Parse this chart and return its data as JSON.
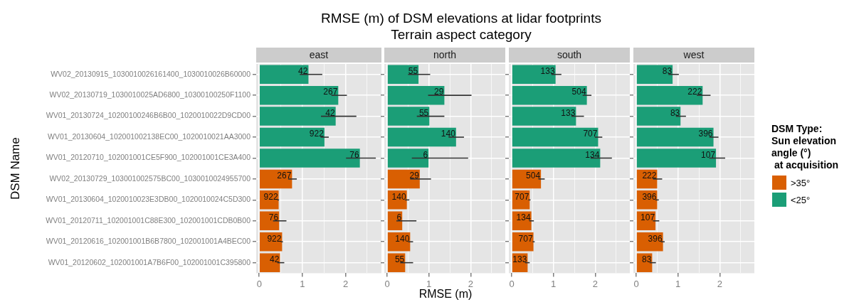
{
  "chart_data": [
    {
      "type": "bar",
      "orientation": "horizontal",
      "stacked": true,
      "title": "east",
      "ylabel": "DSM Name",
      "legend": "right",
      "legend_title": "DSM Type:\nSun elevation\nangle (°)\n at acquisition",
      "grid": true,
      "xlim": [
        -0.07,
        2.83
      ],
      "xticks": [
        0,
        {
          "value": 0.5,
          "label": null
        },
        1,
        {
          "value": 1.5,
          "label": null
        },
        2,
        {
          "value": 2.5,
          "label": null
        }
      ],
      "categories": [
        "WV02_20130915_1030010026161400_1030010026B60000",
        "WV02_20130719_1030010025AD6800_10300100250F1100",
        "WV01_20130724_10200100246B6B00_1020010022D9CD00",
        "WV01_20130604_102001002138EC00_1020010021AA3000",
        "WV01_20120710_102001001CE5F900_102001001CE3A400",
        "WV02_20130729_103001002575BC00_1030010024955700",
        "WV01_20130604_1020010023E3DB00_1020010024C5D300",
        "WV01_20120711_102001001C88E300_102001001CDB0B00",
        "WV01_20120616_102001001B6B7800_102001001A4BEC00",
        "WV01_20120602_102001001A7B6F00_102001001C395800"
      ],
      "series": [
        {
          "name": ">35°",
          "color": "#d95f02",
          "values": [
            null,
            null,
            null,
            null,
            null,
            0.76,
            0.45,
            0.46,
            0.53,
            0.48
          ],
          "errors": [
            null,
            null,
            null,
            null,
            null,
            [
              0.67,
              0.87
            ],
            [
              0.42,
              0.46
            ],
            [
              0.32,
              0.63
            ],
            [
              0.5,
              0.55
            ],
            [
              0.42,
              0.58
            ]
          ]
        },
        {
          "name": "<25°",
          "color": "#1b9e77",
          "values": [
            1.14,
            1.83,
            1.77,
            1.51,
            2.33,
            null,
            null,
            null,
            null,
            null
          ],
          "errors": [
            [
              0.94,
              1.46
            ],
            [
              1.67,
              2.03
            ],
            [
              1.43,
              2.25
            ],
            [
              1.42,
              1.61
            ],
            [
              2.01,
              2.7
            ],
            null,
            null,
            null,
            null,
            null
          ]
        }
      ],
      "annotations": [
        "RMSE (m) of DSM elevations at lidar footprints",
        "Terrain aspect category",
        {
          "text": "42",
          "x": 1.14,
          "y": "WV02_20130915_1030010026161400_1030010026B60000"
        },
        {
          "text": "267",
          "x": 1.83,
          "y": "WV02_20130719_1030010025AD6800_10300100250F1100"
        },
        {
          "text": "42",
          "x": 1.77,
          "y": "WV01_20130724_10200100246B6B00_1020010022D9CD00"
        },
        {
          "text": "922",
          "x": 1.51,
          "y": "WV01_20130604_102001002138EC00_1020010021AA3000"
        },
        {
          "text": "76",
          "x": 2.33,
          "y": "WV01_20120710_102001001CE5F900_102001001CE3A400"
        },
        {
          "text": "267",
          "x": 0.76,
          "y": "WV02_20130729_103001002575BC00_1030010024955700"
        },
        {
          "text": "922",
          "x": 0.45,
          "y": "WV01_20130604_1020010023E3DB00_1020010024C5D300"
        },
        {
          "text": "76",
          "x": 0.46,
          "y": "WV01_20120711_102001001C88E300_102001001CDB0B00"
        },
        {
          "text": "922",
          "x": 0.53,
          "y": "WV01_20120616_102001001B6B7800_102001001A4BEC00"
        },
        {
          "text": "42",
          "x": 0.48,
          "y": "WV01_20120602_102001001A7B6F00_102001001C395800"
        }
      ]
    },
    {
      "type": "bar",
      "orientation": "horizontal",
      "stacked": true,
      "title": "north",
      "xlabel": "RMSE (m)",
      "tick_labels": "x",
      "grid": true,
      "xlim": [
        -0.07,
        2.83
      ],
      "xticks": [
        0,
        {
          "value": 0.5,
          "label": null
        },
        1,
        {
          "value": 1.5,
          "label": null
        },
        2,
        {
          "value": 2.5,
          "label": null
        }
      ],
      "categories": [
        "WV02_20130915_1030010026161400_1030010026B60000",
        "WV02_20130719_1030010025AD6800_10300100250F1100",
        "WV01_20130724_10200100246B6B00_1020010022D9CD00",
        "WV01_20130604_102001002138EC00_1020010021AA3000",
        "WV01_20120710_102001001CE5F900_102001001CE3A400",
        "WV02_20130729_103001002575BC00_1030010024955700",
        "WV01_20130604_1020010023E3DB00_1020010024C5D300",
        "WV01_20120711_102001001C88E300_102001001CDB0B00",
        "WV01_20120616_102001001B6B7800_102001001A4BEC00",
        "WV01_20120602_102001001A7B6F00_102001001C395800"
      ],
      "series": [
        {
          "color": "#d95f02",
          "values": [
            null,
            null,
            null,
            null,
            null,
            0.78,
            0.47,
            0.36,
            0.55,
            0.43
          ],
          "errors": [
            null,
            null,
            null,
            null,
            null,
            [
              0.55,
              1.05
            ],
            [
              0.43,
              0.53
            ],
            [
              0.22,
              0.7
            ],
            [
              0.5,
              0.62
            ],
            [
              0.31,
              0.62
            ]
          ]
        },
        {
          "color": "#1b9e77",
          "values": [
            0.75,
            1.37,
            1.01,
            1.65,
            0.99,
            null,
            null,
            null,
            null,
            null
          ],
          "errors": [
            [
              0.5,
              1.03
            ],
            [
              0.98,
              2.02
            ],
            [
              0.71,
              1.37
            ],
            [
              1.47,
              1.84
            ],
            [
              0.59,
              1.94
            ],
            null,
            null,
            null,
            null,
            null
          ]
        }
      ],
      "annotations": [
        {
          "text": "55",
          "x": 0.75,
          "y": "WV02_20130915_1030010026161400_1030010026B60000"
        },
        {
          "text": "29",
          "x": 1.37,
          "y": "WV02_20130719_1030010025AD6800_10300100250F1100"
        },
        {
          "text": "55",
          "x": 1.01,
          "y": "WV01_20130724_10200100246B6B00_1020010022D9CD00"
        },
        {
          "text": "140",
          "x": 1.65,
          "y": "WV01_20130604_102001002138EC00_1020010021AA3000"
        },
        {
          "text": "6",
          "x": 0.99,
          "y": "WV01_20120710_102001001CE5F900_102001001CE3A400"
        },
        {
          "text": "29",
          "x": 0.78,
          "y": "WV02_20130729_103001002575BC00_1030010024955700"
        },
        {
          "text": "140",
          "x": 0.47,
          "y": "WV01_20130604_1020010023E3DB00_1020010024C5D300"
        },
        {
          "text": "6",
          "x": 0.36,
          "y": "WV01_20120711_102001001C88E300_102001001CDB0B00"
        },
        {
          "text": "140",
          "x": 0.55,
          "y": "WV01_20120616_102001001B6B7800_102001001A4BEC00"
        },
        {
          "text": "55",
          "x": 0.43,
          "y": "WV01_20120602_102001001A7B6F00_102001001C395800"
        }
      ]
    },
    {
      "type": "bar",
      "orientation": "horizontal",
      "stacked": true,
      "title": "south",
      "tick_labels": "x",
      "grid": true,
      "xlim": [
        -0.07,
        2.83
      ],
      "xticks": [
        0,
        {
          "value": 0.5,
          "label": null
        },
        1,
        {
          "value": 1.5,
          "label": null
        },
        2,
        {
          "value": 2.5,
          "label": null
        }
      ],
      "categories": [
        "WV02_20130915_1030010026161400_1030010026B60000",
        "WV02_20130719_1030010025AD6800_10300100250F1100",
        "WV01_20130724_10200100246B6B00_1020010022D9CD00",
        "WV01_20130604_102001002138EC00_1020010021AA3000",
        "WV01_20120710_102001001CE5F900_102001001CE3A400",
        "WV02_20130729_103001002575BC00_1030010024955700",
        "WV01_20130604_1020010023E3DB00_1020010024C5D300",
        "WV01_20120711_102001001C88E300_102001001CDB0B00",
        "WV01_20120616_102001001B6B7800_102001001A4BEC00",
        "WV01_20120602_102001001A7B6F00_102001001C395800"
      ],
      "series": [
        {
          "color": "#d95f02",
          "values": [
            null,
            null,
            null,
            null,
            null,
            0.7,
            0.43,
            0.47,
            0.52,
            0.38
          ],
          "errors": [
            null,
            null,
            null,
            null,
            null,
            [
              0.64,
              0.79
            ],
            [
              0.4,
              0.45
            ],
            [
              0.42,
              0.53
            ],
            [
              0.5,
              0.55
            ],
            [
              0.32,
              0.43
            ]
          ]
        },
        {
          "color": "#1b9e77",
          "values": [
            1.05,
            1.8,
            1.54,
            2.07,
            2.12,
            null,
            null,
            null,
            null,
            null
          ],
          "errors": [
            [
              0.95,
              1.19
            ],
            [
              1.7,
              1.91
            ],
            [
              1.43,
              1.73
            ],
            [
              1.99,
              2.17
            ],
            [
              1.89,
              2.4
            ],
            null,
            null,
            null,
            null,
            null
          ]
        }
      ],
      "annotations": [
        {
          "text": "133",
          "x": 1.05,
          "y": "WV02_20130915_1030010026161400_1030010026B60000"
        },
        {
          "text": "504",
          "x": 1.8,
          "y": "WV02_20130719_1030010025AD6800_10300100250F1100"
        },
        {
          "text": "133",
          "x": 1.54,
          "y": "WV01_20130724_10200100246B6B00_1020010022D9CD00"
        },
        {
          "text": "707",
          "x": 2.07,
          "y": "WV01_20130604_102001002138EC00_1020010021AA3000"
        },
        {
          "text": "134",
          "x": 2.12,
          "y": "WV01_20120710_102001001CE5F900_102001001CE3A400"
        },
        {
          "text": "504",
          "x": 0.7,
          "y": "WV02_20130729_103001002575BC00_1030010024955700"
        },
        {
          "text": "707",
          "x": 0.43,
          "y": "WV01_20130604_1020010023E3DB00_1020010024C5D300"
        },
        {
          "text": "134",
          "x": 0.47,
          "y": "WV01_20120711_102001001C88E300_102001001CDB0B00"
        },
        {
          "text": "707",
          "x": 0.52,
          "y": "WV01_20120616_102001001B6B7800_102001001A4BEC00"
        },
        {
          "text": "133",
          "x": 0.38,
          "y": "WV01_20120602_102001001A7B6F00_102001001C395800"
        }
      ]
    },
    {
      "type": "bar",
      "orientation": "horizontal",
      "stacked": true,
      "title": "west",
      "tick_labels": "x",
      "grid": true,
      "xlim": [
        -0.07,
        2.83
      ],
      "xticks": [
        0,
        {
          "value": 0.5,
          "label": null
        },
        1,
        {
          "value": 1.5,
          "label": null
        },
        2,
        {
          "value": 2.5,
          "label": null
        }
      ],
      "categories": [
        "WV02_20130915_1030010026161400_1030010026B60000",
        "WV02_20130719_1030010025AD6800_10300100250F1100",
        "WV01_20130724_10200100246B6B00_1020010022D9CD00",
        "WV01_20130604_102001002138EC00_1020010021AA3000",
        "WV01_20120710_102001001CE5F900_102001001CE3A400",
        "WV02_20130729_103001002575BC00_1030010024955700",
        "WV01_20130604_1020010023E3DB00_1020010024C5D300",
        "WV01_20120711_102001001C88E300_102001001CDB0B00",
        "WV01_20120616_102001001B6B7800_102001001A4BEC00",
        "WV01_20120602_102001001A7B6F00_102001001C395800"
      ],
      "series": [
        {
          "color": "#d95f02",
          "values": [
            null,
            null,
            null,
            null,
            null,
            0.5,
            0.5,
            0.46,
            0.64,
            0.38
          ],
          "errors": [
            null,
            null,
            null,
            null,
            null,
            [
              0.4,
              0.62
            ],
            [
              0.46,
              0.54
            ],
            [
              0.4,
              0.55
            ],
            [
              0.59,
              0.68
            ],
            [
              0.32,
              0.47
            ]
          ]
        },
        {
          "color": "#1b9e77",
          "values": [
            0.87,
            1.59,
            1.06,
            1.85,
            1.91,
            null,
            null,
            null,
            null,
            null
          ],
          "errors": [
            [
              0.77,
              1.02
            ],
            [
              1.45,
              1.78
            ],
            [
              0.95,
              1.19
            ],
            [
              1.75,
              1.97
            ],
            [
              1.75,
              2.13
            ],
            null,
            null,
            null,
            null,
            null
          ]
        }
      ],
      "annotations": [
        {
          "text": "83",
          "x": 0.87,
          "y": "WV02_20130915_1030010026161400_1030010026B60000"
        },
        {
          "text": "222",
          "x": 1.59,
          "y": "WV02_20130719_1030010025AD6800_10300100250F1100"
        },
        {
          "text": "83",
          "x": 1.06,
          "y": "WV01_20130724_10200100246B6B00_1020010022D9CD00"
        },
        {
          "text": "396",
          "x": 1.85,
          "y": "WV01_20130604_102001002138EC00_1020010021AA3000"
        },
        {
          "text": "107",
          "x": 1.91,
          "y": "WV01_20120710_102001001CE5F900_102001001CE3A400"
        },
        {
          "text": "222",
          "x": 0.5,
          "y": "WV02_20130729_103001002575BC00_1030010024955700"
        },
        {
          "text": "396",
          "x": 0.5,
          "y": "WV01_20130604_1020010023E3DB00_1020010024C5D300"
        },
        {
          "text": "107",
          "x": 0.46,
          "y": "WV01_20120711_102001001C88E300_102001001CDB0B00"
        },
        {
          "text": "396",
          "x": 0.64,
          "y": "WV01_20120616_102001001B6B7800_102001001A4BEC00"
        },
        {
          "text": "83",
          "x": 0.38,
          "y": "WV01_20120602_102001001A7B6F00_102001001C395800"
        }
      ]
    }
  ]
}
